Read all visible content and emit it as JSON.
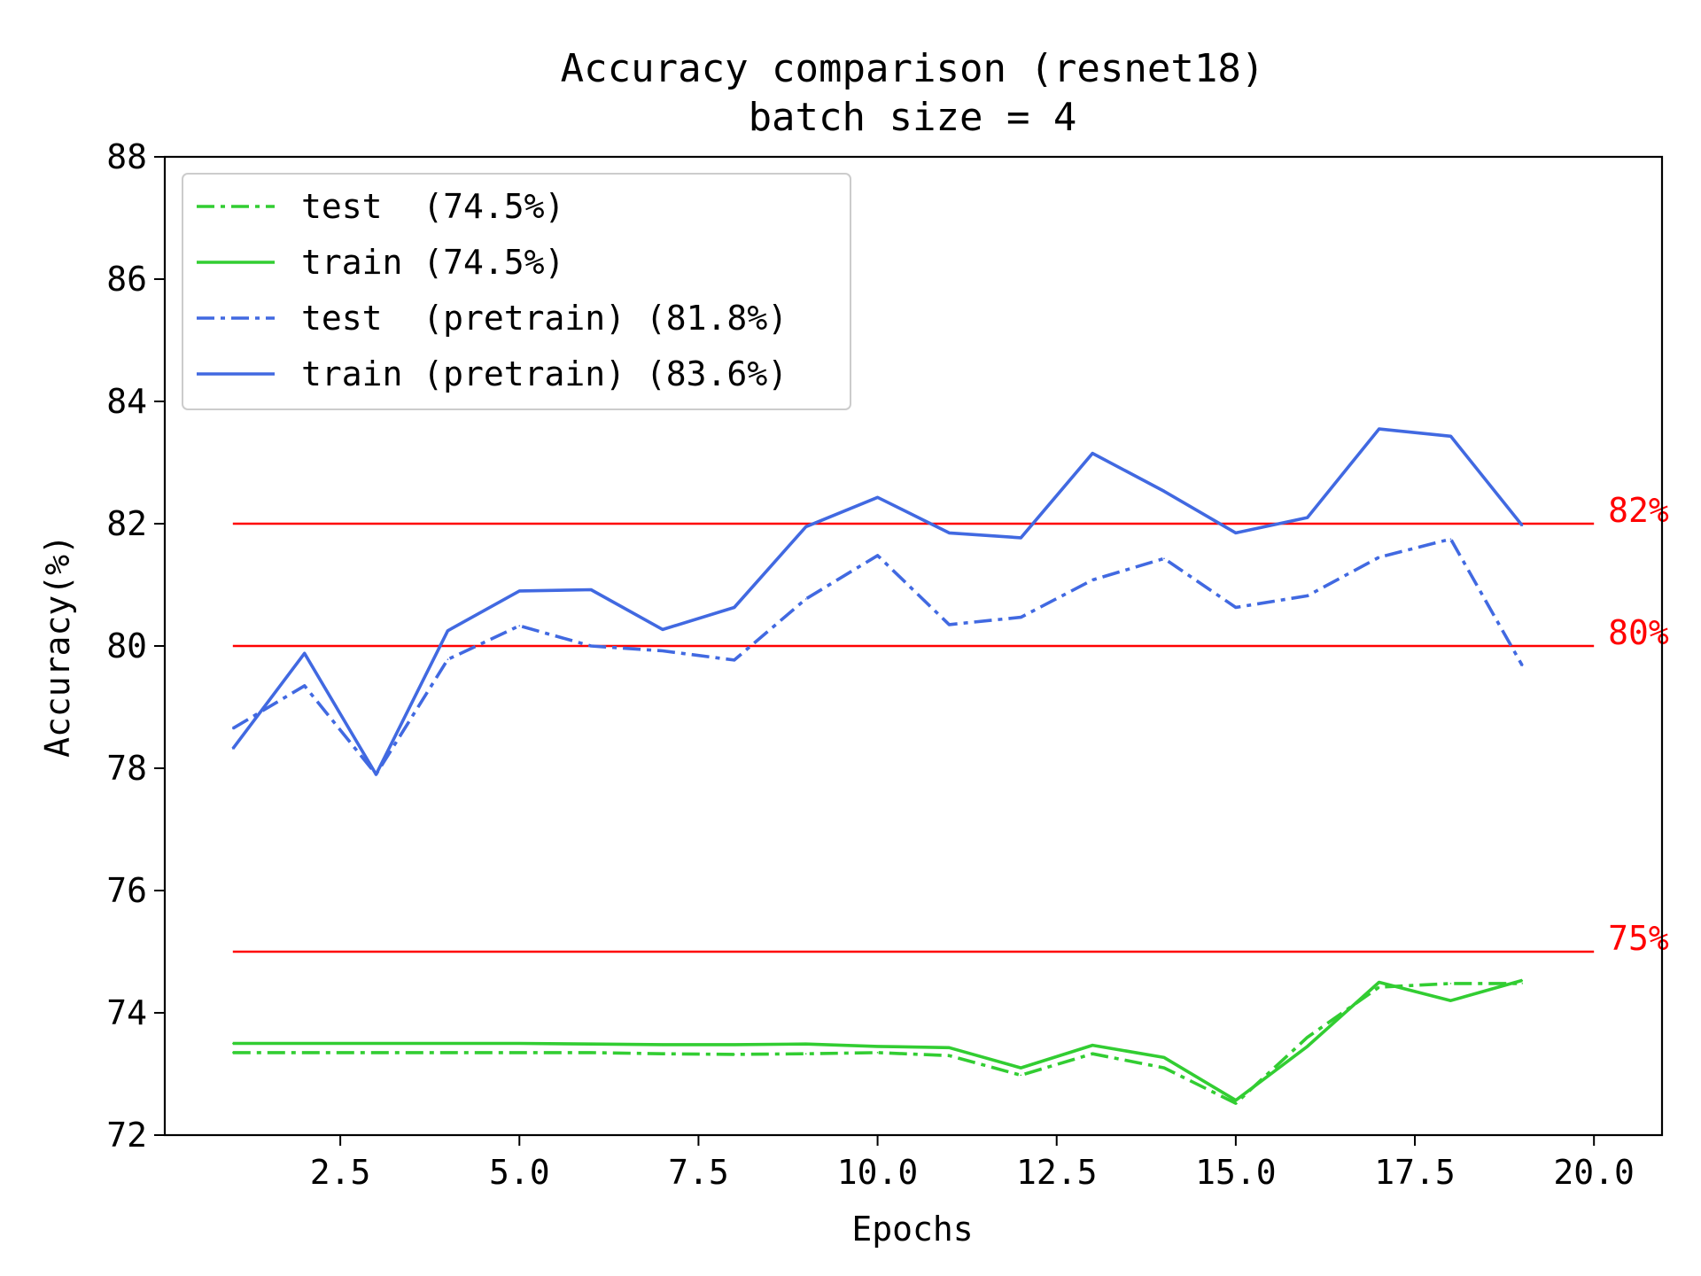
{
  "chart_data": {
    "type": "line",
    "title": "Accuracy comparison (resnet18)",
    "subtitle": "batch size = 4",
    "xlabel": "Epochs",
    "ylabel": "Accuracy(%)",
    "xlim": [
      0.05,
      20.95
    ],
    "ylim": [
      72,
      88
    ],
    "xticks": [
      2.5,
      5.0,
      7.5,
      10.0,
      12.5,
      15.0,
      17.5,
      20.0
    ],
    "xtick_labels": [
      "2.5",
      "5.0",
      "7.5",
      "10.0",
      "12.5",
      "15.0",
      "17.5",
      "20.0"
    ],
    "yticks": [
      72,
      74,
      76,
      78,
      80,
      82,
      84,
      86,
      88
    ],
    "ytick_labels": [
      "72",
      "74",
      "76",
      "78",
      "80",
      "82",
      "84",
      "86",
      "88"
    ],
    "grid": false,
    "legend_position": "top-left",
    "x": [
      1,
      2,
      3,
      4,
      5,
      6,
      7,
      8,
      9,
      10,
      11,
      12,
      13,
      14,
      15,
      16,
      17,
      18,
      19
    ],
    "series": [
      {
        "name": "test  (74.5%)",
        "color": "#32cd32",
        "style": "dashdot",
        "values": [
          73.35,
          73.35,
          73.35,
          73.35,
          73.35,
          73.35,
          73.33,
          73.32,
          73.33,
          73.35,
          73.3,
          72.98,
          73.33,
          73.1,
          72.52,
          73.6,
          74.42,
          74.48,
          74.48
        ]
      },
      {
        "name": "train (74.5%)",
        "color": "#32cd32",
        "style": "solid",
        "values": [
          73.5,
          73.5,
          73.5,
          73.5,
          73.5,
          73.49,
          73.48,
          73.48,
          73.49,
          73.45,
          73.43,
          73.1,
          73.47,
          73.27,
          72.57,
          73.45,
          74.5,
          74.2,
          74.53
        ]
      },
      {
        "name": "test  (pretrain) (81.8%)",
        "color": "#4169e1",
        "style": "dashdot",
        "values": [
          78.65,
          79.35,
          77.9,
          79.78,
          80.33,
          80.0,
          79.92,
          79.77,
          80.77,
          81.48,
          80.35,
          80.47,
          81.08,
          81.43,
          80.63,
          80.82,
          81.45,
          81.75,
          79.68
        ]
      },
      {
        "name": "train (pretrain) (83.6%)",
        "color": "#4169e1",
        "style": "solid",
        "values": [
          78.32,
          79.88,
          77.9,
          80.25,
          80.9,
          80.92,
          80.27,
          80.63,
          81.95,
          82.43,
          81.85,
          81.77,
          83.15,
          82.53,
          81.85,
          82.1,
          83.55,
          83.43,
          81.97
        ]
      }
    ],
    "reference_lines": [
      {
        "y": 82,
        "x_range": [
          1,
          20
        ],
        "label": "82%",
        "color": "#ff0000"
      },
      {
        "y": 80,
        "x_range": [
          1,
          20
        ],
        "label": "80%",
        "color": "#ff0000"
      },
      {
        "y": 75,
        "x_range": [
          1,
          20
        ],
        "label": "75%",
        "color": "#ff0000"
      }
    ]
  }
}
